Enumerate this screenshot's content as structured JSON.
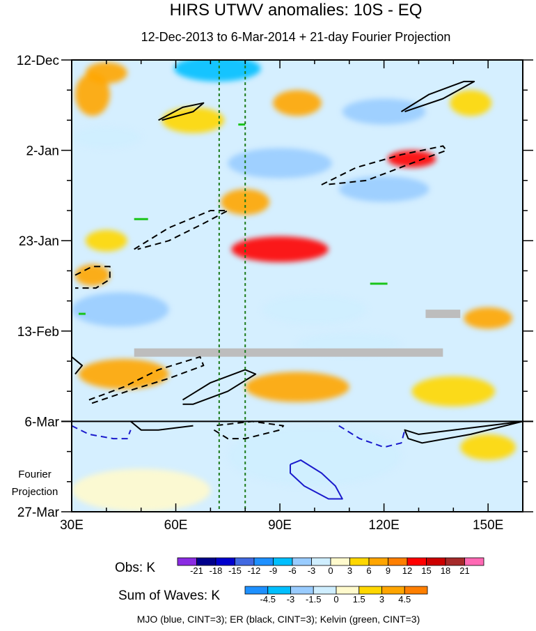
{
  "chart_data": {
    "type": "heatmap",
    "title": "HIRS UTWV anomalies: 10S - EQ",
    "subtitle": "12-Dec-2013 to 6-Mar-2014 + 21-day Fourier Projection",
    "x_axis": {
      "range_deg": [
        30,
        160
      ],
      "ticks": [
        {
          "value": 30,
          "label": "30E"
        },
        {
          "value": 60,
          "label": "60E"
        },
        {
          "value": 90,
          "label": "90E"
        },
        {
          "value": 120,
          "label": "120E"
        },
        {
          "value": 150,
          "label": "150E"
        }
      ]
    },
    "y_axis": {
      "range_days": [
        0,
        105
      ],
      "ticks": [
        {
          "value": 0,
          "label": "12-Dec"
        },
        {
          "value": 21,
          "label": "2-Jan"
        },
        {
          "value": 42,
          "label": "23-Jan"
        },
        {
          "value": 63,
          "label": "13-Feb"
        },
        {
          "value": 84,
          "label": "6-Mar"
        },
        {
          "value": 105,
          "label": "27-Mar"
        }
      ],
      "projection_label": [
        "Fourier",
        "Projection"
      ],
      "projection_start_day": 84
    },
    "reference_lines_deg": [
      72.5,
      80
    ],
    "missing_data": [
      {
        "day": 68,
        "lon_from": 48,
        "lon_to": 137
      },
      {
        "day": 59,
        "lon_from": 132,
        "lon_to": 142
      }
    ],
    "anomaly_field": [
      {
        "day": 2,
        "lon": 72,
        "value": -9,
        "width": 25,
        "height": 6
      },
      {
        "day": 3,
        "lon": 40,
        "value": 6,
        "width": 12,
        "height": 5
      },
      {
        "day": 8,
        "lon": 36,
        "value": 6,
        "width": 10,
        "height": 10
      },
      {
        "day": 10,
        "lon": 95,
        "value": 6,
        "width": 14,
        "height": 6
      },
      {
        "day": 10,
        "lon": 145,
        "value": 3,
        "width": 12,
        "height": 6
      },
      {
        "day": 14,
        "lon": 65,
        "value": 3,
        "width": 18,
        "height": 6
      },
      {
        "day": 12,
        "lon": 120,
        "value": -6,
        "width": 24,
        "height": 6
      },
      {
        "day": 18,
        "lon": 40,
        "value": -3,
        "width": 20,
        "height": 5
      },
      {
        "day": 23,
        "lon": 128,
        "value": 12,
        "width": 14,
        "height": 4
      },
      {
        "day": 24,
        "lon": 90,
        "value": -6,
        "width": 30,
        "height": 7
      },
      {
        "day": 33,
        "lon": 80,
        "value": 6,
        "width": 14,
        "height": 6
      },
      {
        "day": 30,
        "lon": 120,
        "value": -6,
        "width": 26,
        "height": 6
      },
      {
        "day": 44,
        "lon": 90,
        "value": 12,
        "width": 28,
        "height": 6
      },
      {
        "day": 42,
        "lon": 40,
        "value": 3,
        "width": 12,
        "height": 5
      },
      {
        "day": 50,
        "lon": 36,
        "value": 6,
        "width": 10,
        "height": 5
      },
      {
        "day": 58,
        "lon": 44,
        "value": -6,
        "width": 28,
        "height": 8
      },
      {
        "day": 60,
        "lon": 150,
        "value": 6,
        "width": 14,
        "height": 5
      },
      {
        "day": 58,
        "lon": 100,
        "value": -3,
        "width": 30,
        "height": 7
      },
      {
        "day": 73,
        "lon": 45,
        "value": 6,
        "width": 26,
        "height": 7
      },
      {
        "day": 76,
        "lon": 95,
        "value": 6,
        "width": 30,
        "height": 7
      },
      {
        "day": 77,
        "lon": 140,
        "value": 3,
        "width": 24,
        "height": 7
      },
      {
        "day": 66,
        "lon": 110,
        "value": -3,
        "width": 30,
        "height": 5
      },
      {
        "day": 92,
        "lon": 100,
        "value": -1.5,
        "width": 50,
        "height": 14
      },
      {
        "day": 90,
        "lon": 150,
        "value": 3,
        "width": 16,
        "height": 6
      },
      {
        "day": 100,
        "lon": 50,
        "value": 1.5,
        "width": 40,
        "height": 10
      }
    ],
    "wave_contours": [
      {
        "wave": "ER",
        "sign": "positive",
        "points": [
          [
            55,
            14
          ],
          [
            62,
            11
          ],
          [
            68,
            10
          ],
          [
            65,
            12
          ],
          [
            56,
            14
          ]
        ]
      },
      {
        "wave": "ER",
        "sign": "positive",
        "points": [
          [
            125,
            12
          ],
          [
            133,
            8
          ],
          [
            143,
            5
          ],
          [
            146,
            5
          ],
          [
            137,
            9
          ],
          [
            126,
            12
          ]
        ]
      },
      {
        "wave": "ER",
        "sign": "negative",
        "points": [
          [
            102,
            29
          ],
          [
            112,
            25
          ],
          [
            125,
            22
          ],
          [
            137,
            20
          ],
          [
            138,
            21
          ],
          [
            128,
            24
          ],
          [
            115,
            28
          ],
          [
            103,
            29
          ]
        ]
      },
      {
        "wave": "ER",
        "sign": "negative",
        "points": [
          [
            48,
            44
          ],
          [
            58,
            39
          ],
          [
            70,
            35
          ],
          [
            75,
            35
          ],
          [
            68,
            38
          ],
          [
            58,
            42
          ],
          [
            49,
            44
          ]
        ]
      },
      {
        "wave": "ER",
        "sign": "negative",
        "points": [
          [
            31,
            50
          ],
          [
            36,
            48
          ],
          [
            41,
            48
          ],
          [
            41,
            51
          ],
          [
            37,
            53
          ],
          [
            31,
            53
          ]
        ]
      },
      {
        "wave": "ER",
        "sign": "positive",
        "points": [
          [
            30,
            69
          ],
          [
            33,
            71
          ],
          [
            31,
            73
          ]
        ]
      },
      {
        "wave": "ER",
        "sign": "negative",
        "points": [
          [
            35,
            79
          ],
          [
            45,
            76
          ],
          [
            55,
            72
          ],
          [
            67,
            69
          ],
          [
            68,
            71
          ],
          [
            58,
            74
          ],
          [
            46,
            77
          ],
          [
            35,
            80
          ]
        ]
      },
      {
        "wave": "ER",
        "sign": "positive",
        "points": [
          [
            62,
            79
          ],
          [
            70,
            75
          ],
          [
            80,
            72
          ],
          [
            83,
            73
          ],
          [
            75,
            77
          ],
          [
            65,
            80
          ],
          [
            62,
            80
          ]
        ]
      },
      {
        "wave": "ER",
        "sign": "negative",
        "points": [
          [
            71,
            86
          ],
          [
            75,
            88
          ],
          [
            80,
            88
          ],
          [
            90,
            86
          ],
          [
            91,
            85
          ],
          [
            82,
            84
          ],
          [
            71,
            85
          ]
        ]
      },
      {
        "wave": "ER",
        "sign": "positive",
        "points": [
          [
            47,
            84
          ],
          [
            50,
            86
          ],
          [
            55,
            86
          ],
          [
            65,
            85
          ]
        ]
      },
      {
        "wave": "ER",
        "sign": "positive",
        "points": [
          [
            160,
            84
          ],
          [
            150,
            85
          ],
          [
            140,
            86
          ],
          [
            130,
            87
          ],
          [
            126,
            86
          ],
          [
            127,
            88
          ],
          [
            131,
            89
          ],
          [
            145,
            87
          ],
          [
            160,
            84
          ]
        ]
      },
      {
        "wave": "MJO",
        "sign": "negative",
        "points": [
          [
            30,
            85
          ],
          [
            35,
            87
          ],
          [
            42,
            88
          ],
          [
            46,
            88
          ],
          [
            47,
            86
          ]
        ]
      },
      {
        "wave": "MJO",
        "sign": "negative",
        "points": [
          [
            107,
            85
          ],
          [
            113,
            88
          ],
          [
            120,
            90
          ],
          [
            125,
            89
          ],
          [
            126,
            86
          ]
        ]
      },
      {
        "wave": "MJO",
        "sign": "positive",
        "points": [
          [
            93,
            94
          ],
          [
            96,
            93
          ],
          [
            102,
            96
          ],
          [
            106,
            99
          ],
          [
            108,
            102
          ],
          [
            104,
            102
          ],
          [
            97,
            99
          ],
          [
            93,
            96
          ],
          [
            93,
            94
          ]
        ]
      },
      {
        "wave": "Kelvin",
        "sign": "positive",
        "points": [
          [
            48,
            37
          ],
          [
            52,
            37
          ]
        ]
      },
      {
        "wave": "Kelvin",
        "sign": "positive",
        "points": [
          [
            116,
            52
          ],
          [
            121,
            52
          ]
        ]
      },
      {
        "wave": "Kelvin",
        "sign": "positive",
        "points": [
          [
            32,
            59
          ],
          [
            34,
            59
          ]
        ]
      },
      {
        "wave": "Kelvin",
        "sign": "positive",
        "points": [
          [
            78,
            15
          ],
          [
            80,
            15
          ]
        ]
      }
    ],
    "legend_obs": {
      "label": "Obs: K",
      "levels": [
        "-21",
        "-18",
        "-15",
        "-12",
        "-9",
        "-6",
        "-3",
        "0",
        "3",
        "6",
        "9",
        "12",
        "15",
        "18",
        "21"
      ],
      "colors": [
        "#8a2be2",
        "#00008b",
        "#0000cd",
        "#4169e1",
        "#1e90ff",
        "#00bfff",
        "#99ccff",
        "#cfeeff",
        "#fffacd",
        "#ffd700",
        "#ffa500",
        "#ff7f00",
        "#ff0000",
        "#cc0000",
        "#a52a2a",
        "#ff69b4"
      ]
    },
    "legend_waves": {
      "label": "Sum of Waves: K",
      "levels": [
        "-4.5",
        "-3",
        "-1.5",
        "0",
        "1.5",
        "3",
        "4.5"
      ],
      "colors": [
        "#1e90ff",
        "#00bfff",
        "#99ccff",
        "#cfeeff",
        "#fffacd",
        "#ffd700",
        "#ffa500",
        "#ff7f00"
      ]
    },
    "footnote": "MJO (blue, CINT=3); ER (black, CINT=3); Kelvin (green, CINT=3)"
  }
}
